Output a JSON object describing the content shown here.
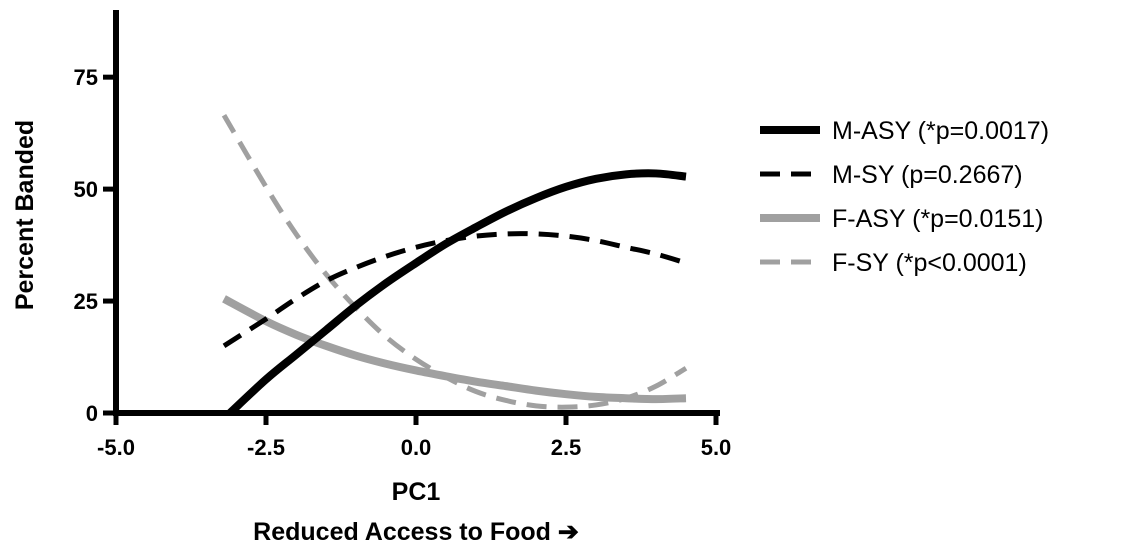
{
  "chart_data": {
    "type": "line",
    "xlabel": "PC1",
    "xlabel_note": "Reduced Access to Food ➔",
    "ylabel": "Percent Banded",
    "xlim": [
      -5.0,
      5.0
    ],
    "ylim": [
      0,
      90
    ],
    "xticks": [
      -5.0,
      -2.5,
      0.0,
      2.5,
      5.0
    ],
    "xtick_labels": [
      "-5.0",
      "-2.5",
      "0.0",
      "2.5",
      "5.0"
    ],
    "yticks": [
      0,
      25,
      50,
      75
    ],
    "ytick_labels": [
      "0",
      "25",
      "50",
      "75"
    ],
    "grid": false,
    "legend_position": "right",
    "series": [
      {
        "name": "M-ASY (*p=0.0017)",
        "color": "#000000",
        "style": "solid",
        "x": [
          -3.1,
          -2.5,
          -2.0,
          -1.5,
          -1.0,
          -0.5,
          0.0,
          0.5,
          1.0,
          1.5,
          2.0,
          2.5,
          3.0,
          3.5,
          4.0,
          4.5
        ],
        "y": [
          0,
          7.5,
          13,
          18.5,
          24,
          29,
          33.5,
          37.8,
          41.5,
          45,
          48,
          50.5,
          52.3,
          53.3,
          53.5,
          52.8
        ]
      },
      {
        "name": "M-SY (p=0.2667)",
        "color": "#000000",
        "style": "dashed",
        "x": [
          -3.2,
          -2.5,
          -2.0,
          -1.5,
          -1.0,
          -0.5,
          0.0,
          0.5,
          1.0,
          1.5,
          2.0,
          2.5,
          3.0,
          3.5,
          4.0,
          4.5
        ],
        "y": [
          15,
          21,
          25.5,
          29.5,
          32.5,
          35,
          37,
          38.5,
          39.5,
          40,
          40,
          39.5,
          38.5,
          37,
          35.5,
          33.5
        ]
      },
      {
        "name": "F-ASY (*p=0.0151)",
        "color": "#a0a0a0",
        "style": "solid",
        "x": [
          -3.2,
          -2.5,
          -2.0,
          -1.5,
          -1.0,
          -0.5,
          0.0,
          0.5,
          1.0,
          1.5,
          2.0,
          2.5,
          3.0,
          3.5,
          4.0,
          4.5
        ],
        "y": [
          25.5,
          20.5,
          17.5,
          15,
          12.8,
          11,
          9.5,
          8.2,
          7,
          6,
          5,
          4.2,
          3.6,
          3.3,
          3.1,
          3.3
        ]
      },
      {
        "name": "F-SY (*p<0.0001)",
        "color": "#a0a0a0",
        "style": "dashed",
        "x": [
          -3.2,
          -2.5,
          -2.0,
          -1.5,
          -1.0,
          -0.5,
          0.0,
          0.5,
          1.0,
          1.5,
          2.0,
          2.5,
          3.0,
          3.5,
          4.0,
          4.5
        ],
        "y": [
          66.5,
          50.5,
          40,
          31,
          23.5,
          17,
          12,
          8,
          4.8,
          2.8,
          1.6,
          1.3,
          1.8,
          3.3,
          6,
          10
        ]
      }
    ]
  }
}
